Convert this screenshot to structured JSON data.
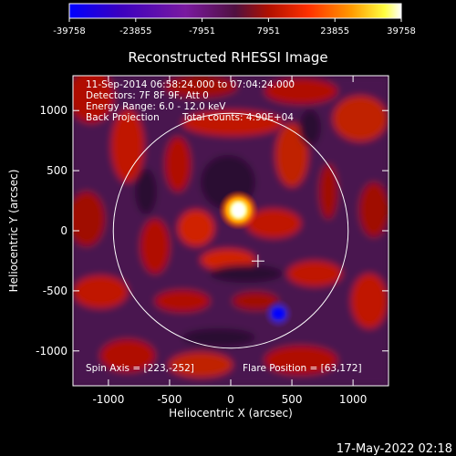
{
  "chart_data": {
    "type": "heatmap",
    "title": "Reconstructed RHESSI Image",
    "xlabel": "Heliocentric X (arcsec)",
    "ylabel": "Heliocentric Y (arcsec)",
    "xlim": [
      -1290,
      1290
    ],
    "ylim": [
      -1290,
      1290
    ],
    "xticks": [
      "-1000",
      "-500",
      "0",
      "500",
      "1000"
    ],
    "xtick_values": [
      -1000,
      -500,
      0,
      500,
      1000
    ],
    "yticks": [
      "1000",
      "500",
      "0",
      "-500",
      "-1000"
    ],
    "ytick_values": [
      1000,
      500,
      0,
      -500,
      -1000
    ],
    "colorbar": {
      "range": [
        -39758,
        39758
      ],
      "ticks": [
        "-39758",
        "-23855",
        "-7951",
        "7951",
        "23855",
        "39758"
      ],
      "tick_values": [
        -39758,
        -23855,
        -7951,
        7951,
        23855,
        39758
      ],
      "colors": [
        "#0000ff",
        "#3a00c0",
        "#7a1aa0",
        "#b01000",
        "#ff3000",
        "#ff9a00",
        "#ffff40",
        "#ffffff"
      ]
    },
    "annotations": {
      "line1": "11-Sep-2014 06:58:24.000 to 07:04:24.000",
      "line2": "Detectors: 7F 8F 9F, Att 0",
      "line3": "Energy Range: 6.0 - 12.0 keV",
      "line4a": "Back Projection",
      "line4b": "Total counts: 4.90E+04",
      "spin_axis": "Spin Axis = [223,-252]",
      "flare_position": "Flare Position = [63,172]"
    },
    "flare_source": {
      "x": 63,
      "y": 172
    },
    "negative_source": {
      "x": 390,
      "y": -690
    },
    "spin_axis_marker": {
      "x": 223,
      "y": -252
    },
    "solar_limb_radius": 960,
    "grid": false
  },
  "footer": {
    "timestamp": "17-May-2022 02:18"
  }
}
